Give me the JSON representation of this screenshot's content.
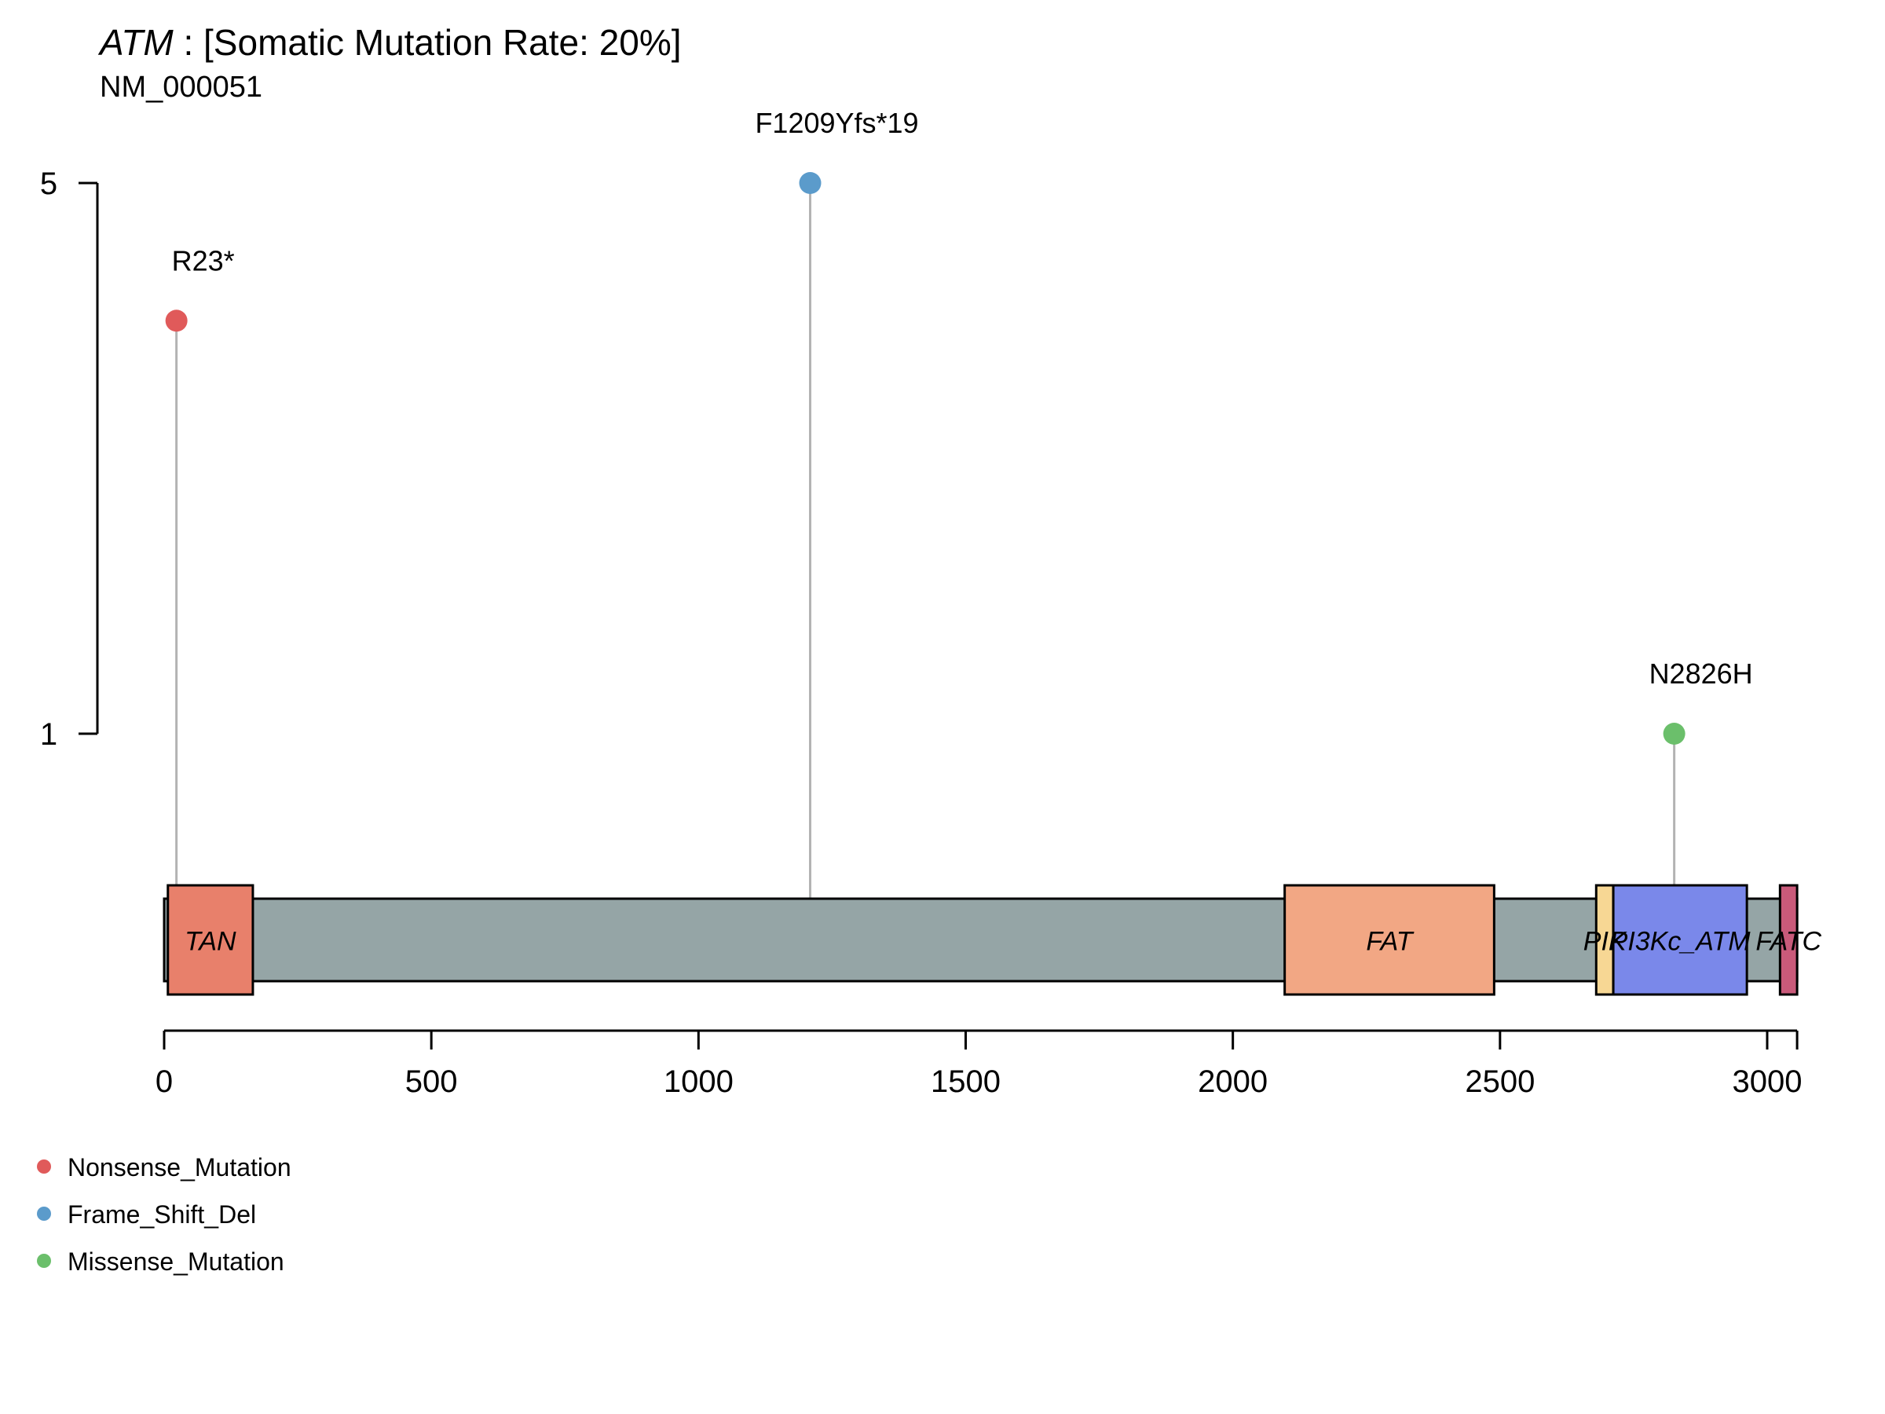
{
  "chart_data": {
    "type": "lollipop",
    "title": {
      "gene": "ATM",
      "rest": " : [Somatic Mutation Rate: 20%]"
    },
    "subtitle": "NM_000051",
    "protein_length": 3056,
    "xlim": [
      0,
      3056
    ],
    "x_ticks": [
      0,
      500,
      1000,
      1500,
      2000,
      2500,
      3000
    ],
    "y_ticks": [
      1,
      5
    ],
    "ylim": [
      0,
      5
    ],
    "domains": [
      {
        "name": "TAN",
        "start": 7,
        "end": 166,
        "color": "#E8806B"
      },
      {
        "name": "FAT",
        "start": 2097,
        "end": 2489,
        "color": "#F2A784"
      },
      {
        "name": "PIK",
        "start": 2680,
        "end": 2712,
        "color": "#F7D794"
      },
      {
        "name": "PI3Kc_ATM",
        "start": 2712,
        "end": 2962,
        "color": "#7A88EA"
      },
      {
        "name": "FATC",
        "start": 3024,
        "end": 3056,
        "color": "#C95A7A"
      }
    ],
    "backbone_color": "#95A5A6",
    "mutations": [
      {
        "label": "R23*",
        "position": 23,
        "count": 4,
        "type": "Nonsense_Mutation",
        "color": "#E05A5A"
      },
      {
        "label": "F1209Yfs*19",
        "position": 1209,
        "count": 5,
        "type": "Frame_Shift_Del",
        "color": "#5B9BCB"
      },
      {
        "label": "N2826H",
        "position": 2826,
        "count": 1,
        "type": "Missense_Mutation",
        "color": "#6BBF6B"
      }
    ],
    "legend": [
      {
        "label": "Nonsense_Mutation",
        "color": "#E05A5A"
      },
      {
        "label": "Frame_Shift_Del",
        "color": "#5B9BCB"
      },
      {
        "label": "Missense_Mutation",
        "color": "#6BBF6B"
      }
    ]
  }
}
